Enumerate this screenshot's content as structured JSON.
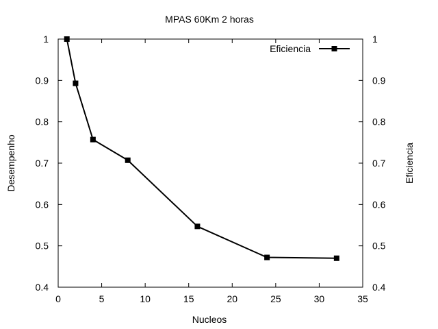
{
  "chart_data": {
    "type": "line",
    "title": "MPAS 60Km 2 horas",
    "xlabel": "Nucleos",
    "ylabel": "Desempenho",
    "y2label": "Eficiencia",
    "xlim": [
      0,
      35
    ],
    "ylim": [
      0.4,
      1
    ],
    "y2lim": [
      0.4,
      1
    ],
    "xticks": [
      0,
      5,
      10,
      15,
      20,
      25,
      30,
      35
    ],
    "xtick_labels": [
      "0",
      "5",
      "10",
      "15",
      "20",
      "25",
      "30",
      "35"
    ],
    "yticks": [
      0.4,
      0.5,
      0.6,
      0.7,
      0.8,
      0.9,
      1
    ],
    "ytick_labels": [
      "0.4",
      "0.5",
      "0.6",
      "0.7",
      "0.8",
      "0.9",
      "1"
    ],
    "grid": false,
    "legend_position": "top-right",
    "series": [
      {
        "name": "Eficiencia",
        "color": "#000000",
        "marker": "square",
        "x": [
          1,
          2,
          4,
          8,
          16,
          24,
          32
        ],
        "y": [
          1.0,
          0.893,
          0.757,
          0.707,
          0.547,
          0.472,
          0.47
        ]
      }
    ]
  }
}
